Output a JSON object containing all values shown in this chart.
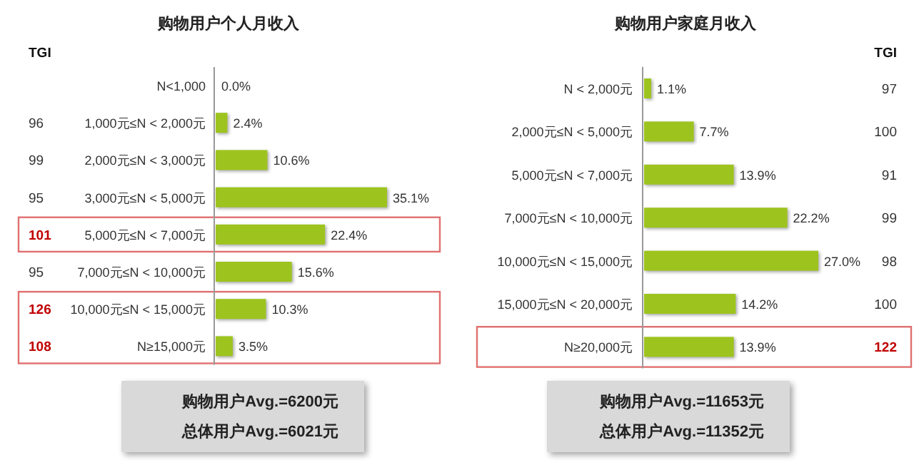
{
  "chart_data": [
    {
      "type": "bar",
      "orientation": "horizontal",
      "title": "购物用户个人月收入",
      "color": "#9dc41e",
      "categories": [
        "N<1,000",
        "1,000元≤N < 2,000元",
        "2,000元≤N < 3,000元",
        "3,000元≤N < 5,000元",
        "5,000元≤N < 7,000元",
        "7,000元≤N < 10,000元",
        "10,000元≤N < 15,000元",
        "N≥15,000元"
      ],
      "values": [
        0.0,
        2.4,
        10.6,
        35.1,
        22.4,
        15.6,
        10.3,
        3.5
      ],
      "value_labels": [
        "0.0%",
        "2.4%",
        "10.6%",
        "35.1%",
        "22.4%",
        "15.6%",
        "10.3%",
        "3.5%"
      ],
      "annotations": [
        "TGI",
        "96",
        "99",
        "95",
        "101",
        "95",
        "126",
        "108",
        "购物用户Avg.=6200元",
        "总体用户Avg.=6021元"
      ]
    },
    {
      "type": "bar",
      "orientation": "horizontal",
      "title": "购物用户家庭月收入",
      "color": "#9dc41e",
      "categories": [
        "N < 2,000元",
        "2,000元≤N < 5,000元",
        "5,000元≤N < 7,000元",
        "7,000元≤N < 10,000元",
        "10,000元≤N < 15,000元",
        "15,000元≤N < 20,000元",
        "N≥20,000元"
      ],
      "values": [
        1.1,
        7.7,
        13.9,
        22.2,
        27.0,
        14.2,
        13.9
      ],
      "value_labels": [
        "1.1%",
        "7.7%",
        "13.9%",
        "22.2%",
        "27.0%",
        "14.2%",
        "13.9%"
      ],
      "annotations": [
        "TGI",
        "97",
        "100",
        "91",
        "99",
        "98",
        "100",
        "122",
        "购物用户Avg.=11653元",
        "总体用户Avg.=11352元"
      ]
    }
  ]
}
